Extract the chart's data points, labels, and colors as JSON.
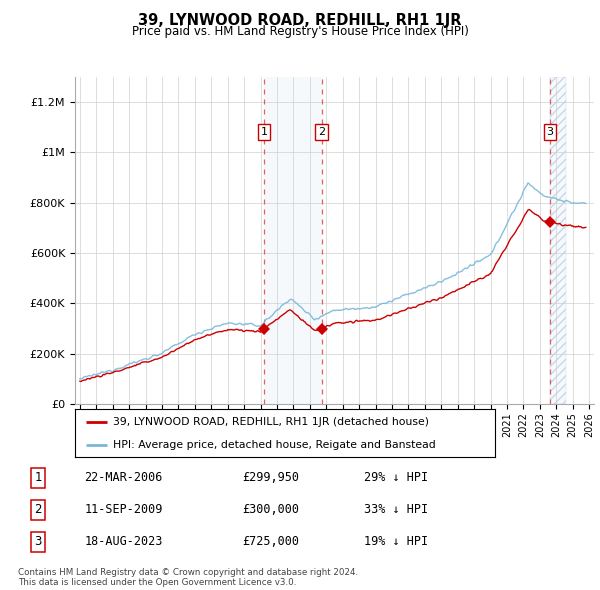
{
  "title": "39, LYNWOOD ROAD, REDHILL, RH1 1JR",
  "subtitle": "Price paid vs. HM Land Registry's House Price Index (HPI)",
  "legend_line1": "39, LYNWOOD ROAD, REDHILL, RH1 1JR (detached house)",
  "legend_line2": "HPI: Average price, detached house, Reigate and Banstead",
  "transactions": [
    {
      "num": 1,
      "date": "22-MAR-2006",
      "price": 299950,
      "pct": "29%",
      "dir": "↓"
    },
    {
      "num": 2,
      "date": "11-SEP-2009",
      "price": 300000,
      "pct": "33%",
      "dir": "↓"
    },
    {
      "num": 3,
      "date": "18-AUG-2023",
      "price": 725000,
      "pct": "19%",
      "dir": "↓"
    }
  ],
  "footnote1": "Contains HM Land Registry data © Crown copyright and database right 2024.",
  "footnote2": "This data is licensed under the Open Government Licence v3.0.",
  "hpi_color": "#7ab8d9",
  "sale_color": "#cc0000",
  "shade_color": "#d8e8f4",
  "ylim": [
    0,
    1300000
  ],
  "yticks": [
    0,
    200000,
    400000,
    600000,
    800000,
    1000000,
    1200000
  ],
  "ytick_labels": [
    "£0",
    "£200K",
    "£400K",
    "£600K",
    "£800K",
    "£1M",
    "£1.2M"
  ],
  "xlim_start": 1994.7,
  "xlim_end": 2026.3,
  "sale_dates": [
    2006.22,
    2009.71,
    2023.63
  ],
  "sale_prices": [
    299950,
    300000,
    725000
  ]
}
